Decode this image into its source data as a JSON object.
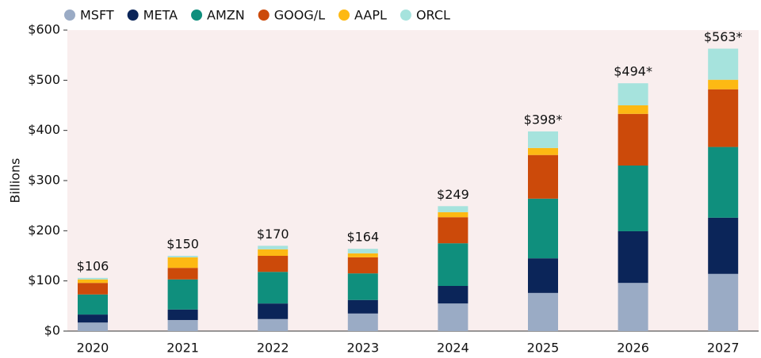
{
  "chart_data": {
    "type": "stacked_bar",
    "y_label": "Billions",
    "categories": [
      "2020",
      "2021",
      "2022",
      "2023",
      "2024",
      "2025",
      "2026",
      "2027"
    ],
    "series": [
      {
        "name": "MSFT",
        "color": "#9aabc5",
        "values": [
          17,
          22,
          24,
          35,
          55,
          76,
          96,
          114
        ]
      },
      {
        "name": "META",
        "color": "#0b2559",
        "values": [
          16,
          21,
          31,
          27,
          35,
          69,
          103,
          112
        ]
      },
      {
        "name": "AMZN",
        "color": "#0f8f7d",
        "values": [
          40,
          60,
          63,
          53,
          85,
          119,
          131,
          141
        ]
      },
      {
        "name": "GOOG/L",
        "color": "#cc4a0a",
        "values": [
          23,
          23,
          32,
          32,
          52,
          87,
          103,
          115
        ]
      },
      {
        "name": "AAPL",
        "color": "#fdb913",
        "values": [
          7,
          21,
          13,
          8,
          10,
          14,
          17,
          19
        ]
      },
      {
        "name": "ORCL",
        "color": "#a6e3dd",
        "values": [
          3,
          3,
          7,
          9,
          12,
          33,
          44,
          62
        ]
      }
    ],
    "totals": [
      106,
      150,
      170,
      164,
      249,
      398,
      494,
      563
    ],
    "total_labels": [
      "$106",
      "$150",
      "$170",
      "$164",
      "$249",
      "$398*",
      "$494*",
      "$563*"
    ],
    "ylim": [
      0,
      600
    ],
    "yticks": [
      {
        "value": 0,
        "label": "$0"
      },
      {
        "value": 100,
        "label": "$100"
      },
      {
        "value": 200,
        "label": "$200"
      },
      {
        "value": 300,
        "label": "$300"
      },
      {
        "value": 400,
        "label": "$400"
      },
      {
        "value": 500,
        "label": "$500"
      },
      {
        "value": 600,
        "label": "$600"
      }
    ]
  }
}
